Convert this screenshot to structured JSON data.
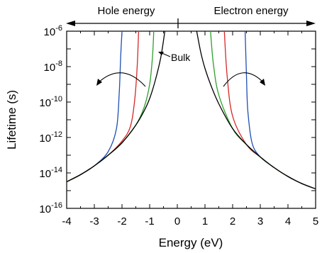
{
  "chart_data": {
    "type": "line",
    "title": "",
    "xlabel": "Energy (eV)",
    "ylabel": "Lifetime (s)",
    "xlim": [
      -4,
      5
    ],
    "ylim_log10": [
      -16,
      -6
    ],
    "y_scale": "log",
    "x_ticks": [
      "-4",
      "-3",
      "-2",
      "-1",
      "0",
      "1",
      "2",
      "3",
      "4",
      "5"
    ],
    "y_ticks": [
      {
        "base": "10",
        "exp": "-6"
      },
      {
        "base": "10",
        "exp": "-8"
      },
      {
        "base": "10",
        "exp": "-10"
      },
      {
        "base": "10",
        "exp": "-12"
      },
      {
        "base": "10",
        "exp": "-14"
      },
      {
        "base": "10",
        "exp": "-16"
      }
    ],
    "grid": false,
    "top_labels": {
      "hole": "Hole energy",
      "electron": "Electron energy"
    },
    "annotations": [
      {
        "text": "Bulk",
        "x": -0.2,
        "y_log10": -7.6
      }
    ],
    "series": [
      {
        "name": "Bulk",
        "color": "#000000",
        "x": [
          -4.0,
          -3.5,
          -3.0,
          -2.5,
          -2.0,
          -1.5,
          -1.2,
          -1.0,
          -0.8,
          -0.6,
          -0.45,
          0.7,
          0.85,
          1.0,
          1.2,
          1.5,
          2.0,
          2.5,
          3.0,
          3.5,
          4.0,
          4.5,
          5.0
        ],
        "y_log10": [
          -14.5,
          -14.1,
          -13.6,
          -13.0,
          -12.3,
          -11.3,
          -10.5,
          -9.8,
          -8.8,
          -7.5,
          -6.0,
          -6.0,
          -7.2,
          -8.1,
          -9.0,
          -10.1,
          -11.5,
          -12.4,
          -13.1,
          -13.7,
          -14.2,
          -14.6,
          -14.9
        ]
      },
      {
        "name": "",
        "color": "#2ca02c",
        "x": [
          -4.0,
          -3.5,
          -3.0,
          -2.5,
          -2.0,
          -1.5,
          -1.2,
          -1.0,
          -0.9,
          -0.85,
          1.2,
          1.3,
          1.5,
          2.0,
          2.5,
          3.0,
          3.5,
          4.0,
          4.5,
          5.0
        ],
        "y_log10": [
          -14.5,
          -14.1,
          -13.6,
          -13.0,
          -12.3,
          -11.3,
          -10.3,
          -9.0,
          -7.5,
          -6.0,
          -6.0,
          -7.8,
          -9.6,
          -11.5,
          -12.4,
          -13.1,
          -13.7,
          -14.2,
          -14.6,
          -14.9
        ]
      },
      {
        "name": "",
        "color": "#d62728",
        "x": [
          -4.0,
          -3.5,
          -3.0,
          -2.5,
          -2.0,
          -1.7,
          -1.55,
          -1.45,
          -1.4,
          1.7,
          1.8,
          2.0,
          2.5,
          3.0,
          3.5,
          4.0,
          4.5,
          5.0
        ],
        "y_log10": [
          -14.5,
          -14.1,
          -13.6,
          -13.0,
          -12.2,
          -11.4,
          -10.0,
          -8.0,
          -6.0,
          -6.0,
          -8.5,
          -10.8,
          -12.4,
          -13.1,
          -13.7,
          -14.2,
          -14.6,
          -14.9
        ]
      },
      {
        "name": "",
        "color": "#1f4fb4",
        "x": [
          -4.0,
          -3.5,
          -3.0,
          -2.5,
          -2.2,
          -2.1,
          -2.05,
          -2.0,
          2.45,
          2.5,
          2.55,
          2.7,
          3.0,
          3.5,
          4.0,
          4.5,
          5.0
        ],
        "y_log10": [
          -14.5,
          -14.1,
          -13.6,
          -12.8,
          -11.5,
          -9.5,
          -7.5,
          -6.0,
          -6.0,
          -8.5,
          -10.5,
          -12.3,
          -13.1,
          -13.7,
          -14.2,
          -14.6,
          -14.9
        ]
      }
    ]
  }
}
